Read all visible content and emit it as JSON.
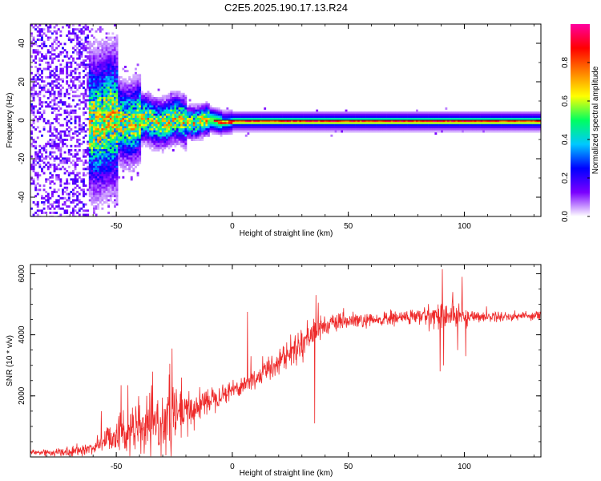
{
  "title": "C2E5.2025.190.17.13.R24",
  "chart_data": [
    {
      "type": "heatmap",
      "xlabel": "Height of straight line (km)",
      "ylabel": "Frequency (Hz)",
      "xlim": [
        -87,
        133
      ],
      "ylim": [
        -50,
        50
      ],
      "xticks": [
        "-50",
        "0",
        "50",
        "100"
      ],
      "yticks": [
        "-40",
        "-20",
        "0",
        "20",
        "40"
      ],
      "tick_values_x": [
        -50,
        0,
        50,
        100
      ],
      "tick_values_y": [
        -40,
        -20,
        0,
        20,
        40
      ],
      "colorbar": {
        "label": "Normalized spectral amplitude",
        "ticks": [
          "0.0",
          "0.2",
          "0.4",
          "0.6",
          "0.8"
        ],
        "tick_values": [
          0,
          0.2,
          0.4,
          0.6,
          0.8
        ],
        "range": [
          0,
          1
        ],
        "colormap": [
          "#ffffff",
          "#7a00ff",
          "#0000ff",
          "#00c8ff",
          "#00ff60",
          "#ffff00",
          "#ff8000",
          "#ff0000",
          "#ff00a0"
        ]
      },
      "line_color": "#000000"
    },
    {
      "type": "line",
      "xlabel": "Height of straight line (km)",
      "ylabel": "SNR (10 * v/v)",
      "xlim": [
        -87,
        133
      ],
      "ylim": [
        0,
        6300
      ],
      "xticks": [
        "-50",
        "0",
        "50",
        "100"
      ],
      "yticks": [
        "2000",
        "4000",
        "6000"
      ],
      "tick_values_x": [
        -50,
        0,
        50,
        100
      ],
      "tick_values_y": [
        2000,
        4000,
        6000
      ],
      "color": "#ee2a2a",
      "trend": {
        "x": [
          -87,
          -70,
          -60,
          -50,
          -40,
          -30,
          -20,
          -10,
          0,
          10,
          20,
          30,
          36,
          40,
          50,
          60,
          70,
          80,
          90,
          100,
          110,
          120,
          133
        ],
        "y": [
          150,
          150,
          300,
          800,
          900,
          1100,
          1400,
          1900,
          2200,
          2550,
          3150,
          3700,
          4200,
          4300,
          4450,
          4450,
          4550,
          4600,
          4650,
          4600,
          4600,
          4600,
          4650
        ]
      },
      "noise": {
        "x": [
          -87,
          -60,
          -50,
          -40,
          -25,
          -15,
          0,
          20,
          35,
          40,
          60,
          80,
          95,
          105,
          133
        ],
        "amplitude": [
          100,
          150,
          600,
          700,
          900,
          400,
          250,
          350,
          450,
          250,
          200,
          220,
          400,
          150,
          120
        ]
      },
      "spikes": [
        {
          "x": -56.5,
          "y": 1500
        },
        {
          "x": -48,
          "y": 2350
        },
        {
          "x": -45,
          "y": 2350
        },
        {
          "x": -27,
          "y": 3050
        },
        {
          "x": -26,
          "y": 3550
        },
        {
          "x": -25,
          "y": 2000
        },
        {
          "x": -22,
          "y": 2600
        },
        {
          "x": 6.5,
          "y": 4750
        },
        {
          "x": 8,
          "y": 3300
        },
        {
          "x": 13,
          "y": 3300
        },
        {
          "x": 30,
          "y": 4050
        },
        {
          "x": 35.5,
          "y": 1100
        },
        {
          "x": 36,
          "y": 5300
        },
        {
          "x": 37,
          "y": 5050
        },
        {
          "x": 89.5,
          "y": 2800
        },
        {
          "x": 90.5,
          "y": 6150
        },
        {
          "x": 91,
          "y": 3000
        },
        {
          "x": 95,
          "y": 5400
        },
        {
          "x": 97,
          "y": 3500
        },
        {
          "x": 99,
          "y": 5900
        },
        {
          "x": 100.5,
          "y": 3300
        }
      ]
    }
  ]
}
